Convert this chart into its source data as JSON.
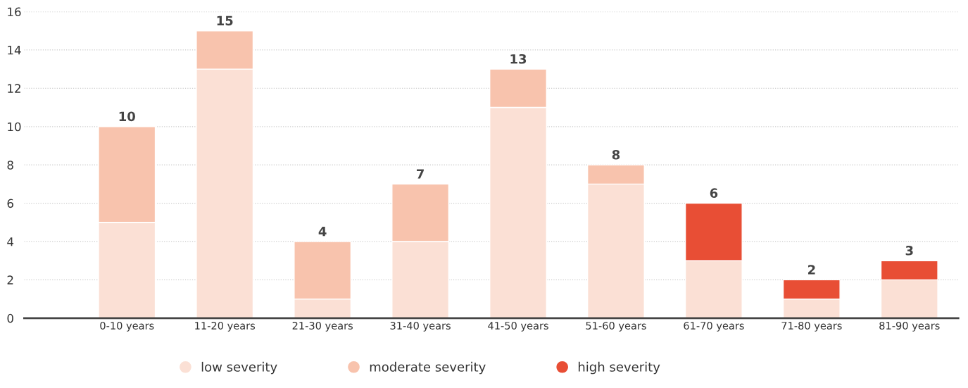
{
  "chart_data": {
    "type": "bar",
    "stacked": true,
    "categories": [
      "0-10 years",
      "11-20 years",
      "21-30 years",
      "31-40 years",
      "41-50 years",
      "51-60 years",
      "61-70 years",
      "71-80 years",
      "81-90 years"
    ],
    "series": [
      {
        "name": "low severity",
        "color": "#fbe0d5",
        "values": [
          5,
          13,
          1,
          4,
          11,
          7,
          3,
          1,
          2
        ]
      },
      {
        "name": "moderate severity",
        "color": "#f8c3ad",
        "values": [
          5,
          2,
          3,
          3,
          2,
          1,
          null,
          null,
          null
        ]
      },
      {
        "name": "high severity",
        "color": "#e84e35",
        "values": [
          null,
          null,
          null,
          null,
          null,
          null,
          3,
          1,
          1
        ]
      }
    ],
    "totals": [
      "10",
      "15",
      "4",
      "7",
      "13",
      "8",
      "6",
      "2",
      "3"
    ],
    "ylim": [
      0,
      16
    ],
    "yticks": [
      0,
      2,
      4,
      6,
      8,
      10,
      12,
      14,
      16
    ],
    "grid": "y",
    "legend": "bottom"
  }
}
